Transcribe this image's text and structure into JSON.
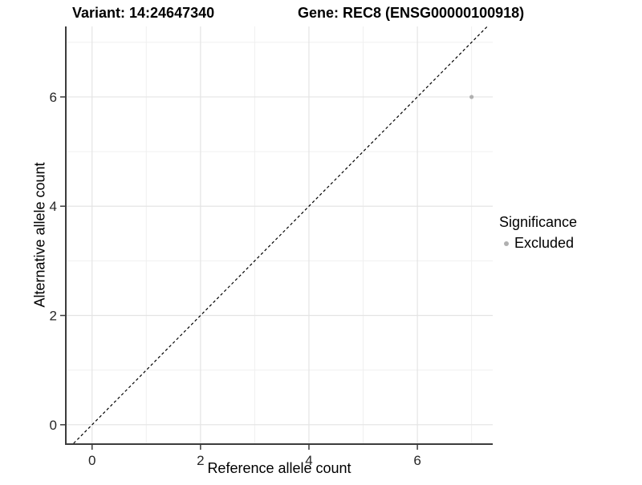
{
  "title": {
    "variant": "Variant: 14:24647340",
    "gene": "Gene: REC8 (ENSG00000100918)"
  },
  "axes": {
    "x": {
      "label": "Reference allele count"
    },
    "y": {
      "label": "Alternative allele count"
    }
  },
  "legend": {
    "title": "Significance",
    "items": [
      {
        "label": "Excluded",
        "color": "#b0b0b0"
      }
    ]
  },
  "colors": {
    "background": "#ffffff",
    "axis_line": "#3c3c3c",
    "tick_label": "#262626",
    "grid_major": "#e4e4e4",
    "grid_minor": "#f0f0f0",
    "identity_line": "#000000",
    "point": "#b0b0b0"
  },
  "chart_data": {
    "type": "scatter",
    "title": "Variant: 14:24647340 — Gene: REC8 (ENSG00000100918)",
    "xlabel": "Reference allele count",
    "ylabel": "Alternative allele count",
    "xlim": [
      -0.47,
      7.39
    ],
    "ylim": [
      -0.34,
      7.29
    ],
    "x_breaks": [
      0,
      2,
      4,
      6
    ],
    "y_breaks": [
      0,
      2,
      4,
      6
    ],
    "x_minor_breaks": [
      1,
      3,
      5,
      7
    ],
    "y_minor_breaks": [
      1,
      3,
      5,
      7
    ],
    "grid": true,
    "legend_position": "right",
    "reference_line": {
      "type": "identity",
      "slope": 1,
      "intercept": 0,
      "style": "dashed"
    },
    "series": [
      {
        "name": "Excluded",
        "color": "#b0b0b0",
        "points": [
          {
            "x": 7,
            "y": 6
          }
        ]
      }
    ]
  }
}
